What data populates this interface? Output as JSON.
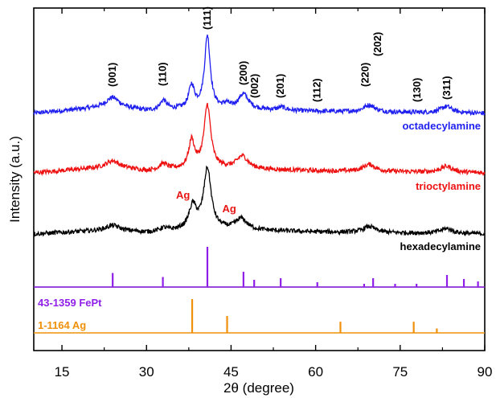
{
  "chart_data": {
    "type": "line",
    "xlabel": "2θ (degree)",
    "ylabel": "Intensity (a.u.)",
    "xlim": [
      10,
      90
    ],
    "x_ticks": [
      "15",
      "30",
      "45",
      "60",
      "75",
      "90"
    ],
    "x_tick_values": [
      15,
      30,
      45,
      60,
      75,
      90
    ],
    "series": [
      {
        "name": "octadecylamine",
        "color": "#1f1ff0",
        "baseline": 0.0,
        "background": [
          [
            10,
            0.0
          ],
          [
            24,
            0.14
          ],
          [
            30,
            0.05
          ],
          [
            40,
            0.1
          ],
          [
            60,
            0.04
          ],
          [
            90,
            0.0
          ]
        ],
        "peaks": [
          [
            24,
            0.18,
            1.4
          ],
          [
            33,
            0.19,
            0.7
          ],
          [
            38,
            0.45,
            0.6
          ],
          [
            40.8,
            1.45,
            0.6
          ],
          [
            44.2,
            0.08,
            0.5
          ],
          [
            47.2,
            0.3,
            1.1
          ],
          [
            54,
            0.06,
            0.8
          ],
          [
            69.5,
            0.14,
            1.2
          ],
          [
            83.2,
            0.13,
            1.2
          ]
        ]
      },
      {
        "name": "trioctylamine",
        "color": "#ee1111",
        "baseline": 0.0,
        "background": [
          [
            10,
            0.0
          ],
          [
            24,
            0.12
          ],
          [
            30,
            0.04
          ],
          [
            40,
            0.1
          ],
          [
            60,
            0.04
          ],
          [
            90,
            0.0
          ]
        ],
        "peaks": [
          [
            24,
            0.12,
            1.4
          ],
          [
            33,
            0.12,
            0.8
          ],
          [
            38,
            0.55,
            0.6
          ],
          [
            40.8,
            1.25,
            0.7
          ],
          [
            47,
            0.25,
            1.2
          ],
          [
            69.5,
            0.14,
            1.3
          ],
          [
            83.2,
            0.12,
            1.3
          ]
        ]
      },
      {
        "name": "hexadecylamine",
        "color": "#000000",
        "baseline": 0.0,
        "background": [
          [
            10,
            0.0
          ],
          [
            24,
            0.08
          ],
          [
            30,
            0.03
          ],
          [
            40,
            0.1
          ],
          [
            60,
            0.04
          ],
          [
            90,
            0.0
          ]
        ],
        "peaks": [
          [
            24,
            0.09,
            1.4
          ],
          [
            33,
            0.06,
            0.8
          ],
          [
            38.2,
            0.45,
            0.8
          ],
          [
            40.8,
            1.2,
            0.8
          ],
          [
            46.8,
            0.22,
            1.2
          ],
          [
            69.5,
            0.12,
            1.3
          ],
          [
            83.2,
            0.1,
            1.3
          ]
        ]
      }
    ],
    "reference_patterns": [
      {
        "name": "43-1359 FePt",
        "color": "#8f1fe8",
        "lines": [
          [
            24,
            0.35
          ],
          [
            32.9,
            0.25
          ],
          [
            40.8,
            1.0
          ],
          [
            47.2,
            0.38
          ],
          [
            49.1,
            0.18
          ],
          [
            53.8,
            0.22
          ],
          [
            60.3,
            0.12
          ],
          [
            68.6,
            0.08
          ],
          [
            70.2,
            0.22
          ],
          [
            74.1,
            0.08
          ],
          [
            77.9,
            0.08
          ],
          [
            83.3,
            0.3
          ],
          [
            86.3,
            0.2
          ],
          [
            88.8,
            0.14
          ]
        ]
      },
      {
        "name": "1-1164 Ag",
        "color": "#f0900a",
        "lines": [
          [
            38.1,
            1.0
          ],
          [
            44.3,
            0.5
          ],
          [
            64.4,
            0.33
          ],
          [
            77.4,
            0.33
          ],
          [
            81.5,
            0.13
          ]
        ]
      }
    ],
    "miller_indices": [
      {
        "label": "(001)",
        "x": 24
      },
      {
        "label": "(110)",
        "x": 32.9
      },
      {
        "label": "(111)",
        "x": 40.8
      },
      {
        "label": "(200)",
        "x": 47.2
      },
      {
        "label": "(002)",
        "x": 49.2
      },
      {
        "label": "(201)",
        "x": 53.8
      },
      {
        "label": "(112)",
        "x": 60.3
      },
      {
        "label": "(220)",
        "x": 68.8
      },
      {
        "label": "(202)",
        "x": 71.0
      },
      {
        "label": "(130)",
        "x": 78.0
      },
      {
        "label": "(311)",
        "x": 83.3
      }
    ],
    "annotations": [
      {
        "label": "Ag",
        "x": 38.1
      },
      {
        "label": "Ag",
        "x": 44.3
      }
    ],
    "grid": false
  }
}
